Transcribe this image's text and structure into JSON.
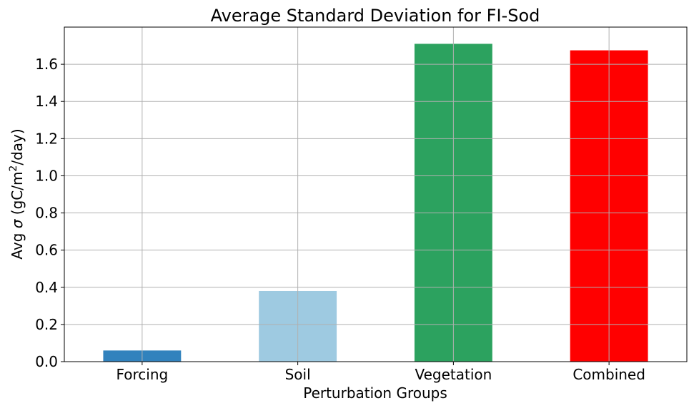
{
  "chart_data": {
    "type": "bar",
    "title": "Average Standard Deviation for FI-Sod",
    "xlabel": "Perturbation Groups",
    "ylabel": {
      "prefix": "Avg ",
      "symbol": "σ",
      "unit_open": " (gC/m",
      "superscript": "2",
      "unit_close": "/day)"
    },
    "categories": [
      "Forcing",
      "Soil",
      "Vegetation",
      "Combined"
    ],
    "values": [
      0.06,
      0.38,
      1.71,
      1.675
    ],
    "colors": [
      "#3182bd",
      "#9ecae1",
      "#2ca25f",
      "#ff0000"
    ],
    "ylim": [
      0,
      1.8
    ],
    "yticks": [
      "0.0",
      "0.2",
      "0.4",
      "0.6",
      "0.8",
      "1.0",
      "1.2",
      "1.4",
      "1.6"
    ],
    "grid": true,
    "legend": "none"
  }
}
